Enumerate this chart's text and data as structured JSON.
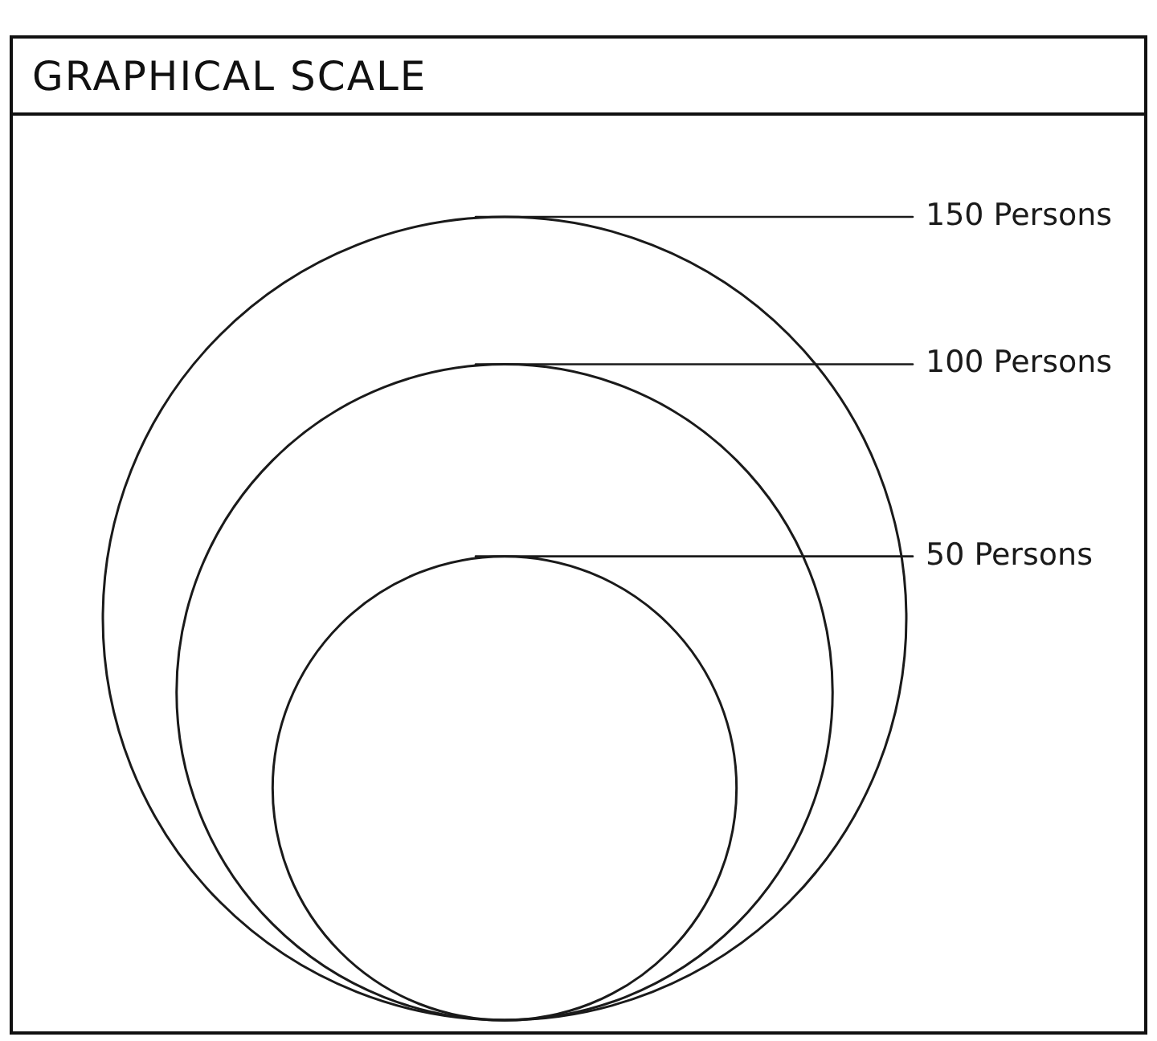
{
  "chart_data": {
    "type": "other",
    "title": "GRAPHICAL SCALE",
    "values": [
      150,
      100,
      50
    ],
    "value_labels": [
      "150 Persons",
      "100 Persons",
      "50 Persons"
    ],
    "color": "#1a1a1a"
  }
}
